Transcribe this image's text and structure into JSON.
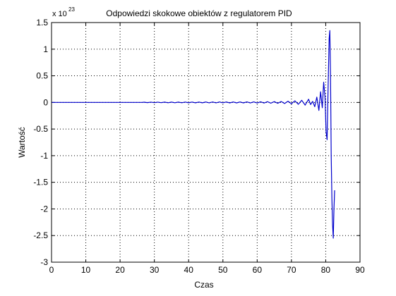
{
  "chart_data": {
    "type": "line",
    "title": "Odpowiedzi skokowe obiektów z regulatorem PID",
    "xlabel": "Czas",
    "ylabel": "Wartość",
    "y_multiplier_text": {
      "base": "x 10",
      "exponent": "23"
    },
    "xlim": [
      0,
      90
    ],
    "ylim": [
      -3,
      1.5
    ],
    "x_ticks": [
      0,
      10,
      20,
      30,
      40,
      50,
      60,
      70,
      80,
      90
    ],
    "y_ticks": [
      1.5,
      1,
      0.5,
      0,
      -0.5,
      -1,
      -1.5,
      -2,
      -2.5,
      -3
    ],
    "x_tick_labels": [
      "0",
      "10",
      "20",
      "30",
      "40",
      "50",
      "60",
      "70",
      "80",
      "90"
    ],
    "y_tick_labels": [
      "1.5",
      "1",
      "0.5",
      "0",
      "-0.5",
      "-1",
      "-1.5",
      "-2",
      "-2.5",
      "-3"
    ],
    "grid": true,
    "grid_style": "dotted",
    "series": [
      {
        "color": "#0000cc",
        "x": [
          0,
          26.5,
          27,
          28,
          29,
          30,
          31,
          32,
          33,
          34,
          35,
          36,
          37,
          38,
          39,
          40,
          41,
          42,
          43,
          44,
          45,
          46,
          47,
          48,
          49,
          50,
          51,
          52,
          53,
          54,
          55,
          56,
          57,
          58,
          59,
          60,
          61,
          62,
          63,
          64,
          65,
          66,
          67,
          68,
          69,
          70,
          71,
          72,
          73,
          74,
          75,
          75.6,
          76.2,
          76.8,
          77.4,
          78,
          78.5,
          79,
          79.4,
          79.8,
          80.1,
          80.4,
          80.7,
          81.0,
          81.2,
          81.4,
          81.6,
          81.8,
          82.0,
          82.2,
          82.4,
          82.6
        ],
        "y": [
          0,
          0,
          0.004,
          -0.004,
          0.005,
          -0.005,
          0.005,
          -0.005,
          0.006,
          -0.006,
          0.006,
          -0.006,
          0.006,
          -0.006,
          0.007,
          -0.007,
          0.007,
          -0.007,
          0.007,
          -0.007,
          0.008,
          -0.008,
          0.008,
          -0.008,
          0.008,
          -0.008,
          0.009,
          -0.009,
          0.009,
          -0.009,
          0.009,
          -0.009,
          0.01,
          -0.01,
          0.01,
          -0.011,
          0.012,
          -0.012,
          0.013,
          -0.014,
          0.015,
          -0.016,
          0.018,
          -0.02,
          0.022,
          -0.025,
          0.03,
          -0.035,
          0.04,
          -0.05,
          0.06,
          -0.04,
          0.02,
          -0.08,
          0.1,
          -0.15,
          0.2,
          -0.1,
          0.38,
          0.1,
          -0.55,
          -0.7,
          0.3,
          1.2,
          1.35,
          0.5,
          -1.0,
          -1.8,
          -2.3,
          -2.55,
          -2.0,
          -1.65
        ]
      }
    ]
  }
}
